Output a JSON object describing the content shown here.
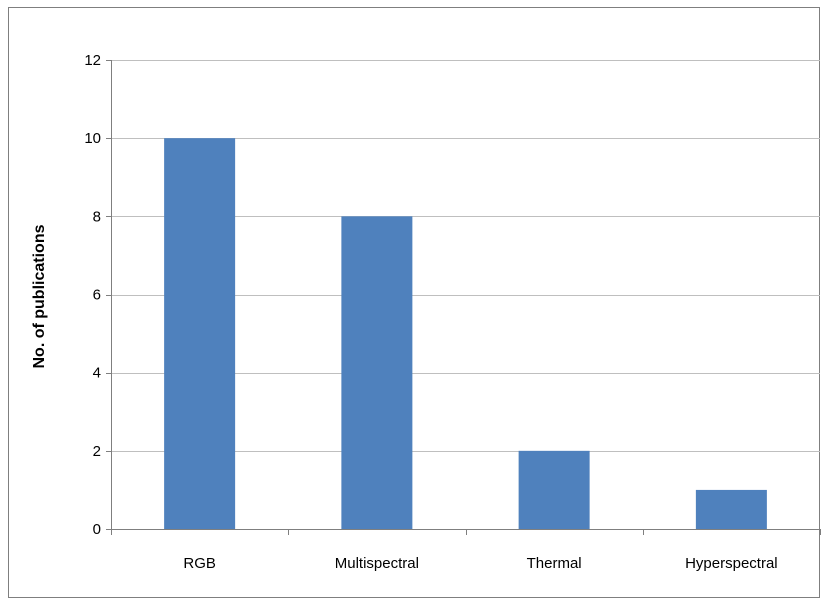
{
  "chart_data": {
    "type": "bar",
    "categories": [
      "RGB",
      "Multispectral",
      "Thermal",
      "Hyperspectral"
    ],
    "values": [
      10,
      8,
      2,
      1
    ],
    "title": "",
    "xlabel": "",
    "ylabel": "No. of publications",
    "ylim": [
      0,
      12
    ],
    "yticks": [
      0,
      2,
      4,
      6,
      8,
      10,
      12
    ],
    "grid": true,
    "legend": "none",
    "bar_color": "#4f81bd",
    "grid_color": "#bfbfbf",
    "axis_color": "#7f7f7f"
  }
}
